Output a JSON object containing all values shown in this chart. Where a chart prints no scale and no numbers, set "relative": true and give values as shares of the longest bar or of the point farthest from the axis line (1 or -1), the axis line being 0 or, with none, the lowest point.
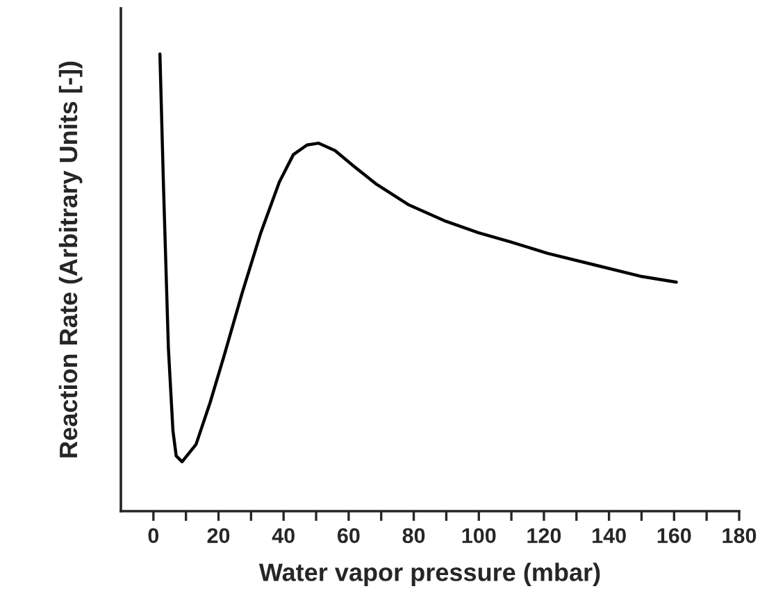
{
  "chart_data": {
    "type": "line",
    "relative": true,
    "xlabel": "Water vapor pressure (mbar)",
    "ylabel": "Reaction Rate (Arbitrary Units [-])",
    "xlim": [
      -10,
      180
    ],
    "xticks": [
      0,
      {
        "value": 10,
        "label": null
      },
      20,
      {
        "value": 30,
        "label": null
      },
      40,
      {
        "value": 50,
        "label": null
      },
      60,
      {
        "value": 70,
        "label": null
      },
      80,
      {
        "value": 90,
        "label": null
      },
      100,
      {
        "value": 110,
        "label": null
      },
      120,
      {
        "value": 130,
        "label": null
      },
      140,
      {
        "value": 150,
        "label": null
      },
      160,
      {
        "value": 170,
        "label": null
      },
      180
    ],
    "grid": false,
    "legend": false,
    "marker": "none",
    "line_style": "solid",
    "series": [
      {
        "color": "#000000",
        "x": [
          2.0,
          3.1,
          4.6,
          6.0,
          7.0,
          8.8,
          13.1,
          17.4,
          21.6,
          27.3,
          33.0,
          38.7,
          43.0,
          47.2,
          50.8,
          55.8,
          61.5,
          68.6,
          78.5,
          89.9,
          99.9,
          109.8,
          121.2,
          135.4,
          149.6,
          160.7
        ],
        "values": [
          1.0,
          0.71,
          0.357,
          0.176,
          0.121,
          0.108,
          0.146,
          0.237,
          0.337,
          0.478,
          0.609,
          0.72,
          0.78,
          0.801,
          0.805,
          0.789,
          0.755,
          0.715,
          0.67,
          0.634,
          0.609,
          0.589,
          0.564,
          0.539,
          0.514,
          0.501
        ]
      }
    ]
  }
}
